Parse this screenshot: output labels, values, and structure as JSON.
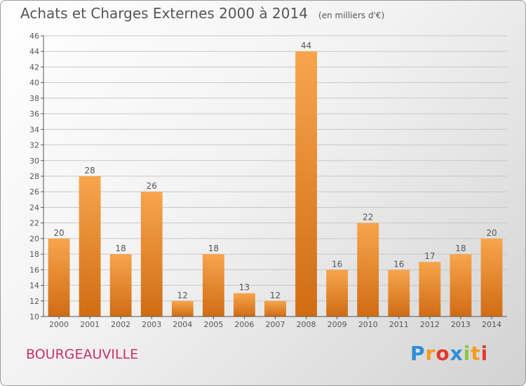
{
  "header": {
    "title": "Achats et Charges Externes 2000 à 2014",
    "subtitle": "(en milliers d'€)"
  },
  "footer": {
    "city": "BOURGEAUVILLE",
    "logo": "Proxiti"
  },
  "colors": {
    "bar_light": "#f7a54c",
    "bar_dark": "#d06c14",
    "city": "#c8306a",
    "axis": "#555555"
  },
  "chart_data": {
    "type": "bar",
    "categories": [
      "2000",
      "2001",
      "2002",
      "2003",
      "2004",
      "2005",
      "2006",
      "2007",
      "2008",
      "2009",
      "2010",
      "2011",
      "2012",
      "2013",
      "2014"
    ],
    "values": [
      20,
      28,
      18,
      26,
      12,
      18,
      13,
      12,
      44,
      16,
      22,
      16,
      17,
      18,
      20
    ],
    "title": "Achats et Charges Externes 2000 à 2014",
    "xlabel": "",
    "ylabel": "",
    "ylim": [
      10,
      46
    ],
    "yticks": [
      10,
      12,
      14,
      16,
      18,
      20,
      22,
      24,
      26,
      28,
      30,
      32,
      34,
      36,
      38,
      40,
      42,
      44,
      46
    ],
    "grid": true,
    "data_labels": true
  }
}
